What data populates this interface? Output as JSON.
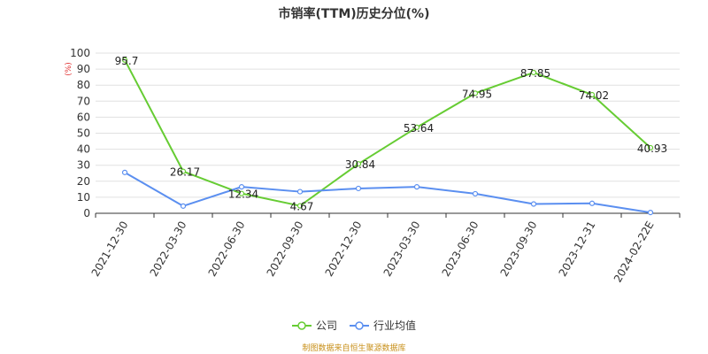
{
  "chart_data": {
    "type": "line",
    "title": "市销率(TTM)历史分位(%)",
    "y_unit": "(%)",
    "ylim": [
      0,
      100
    ],
    "yticks": [
      0,
      10,
      20,
      30,
      40,
      50,
      60,
      70,
      80,
      90,
      100
    ],
    "grid": true,
    "legend_position": "bottom",
    "categories": [
      "2021-12-30",
      "2022-03-30",
      "2022-06-30",
      "2022-09-30",
      "2022-12-30",
      "2023-03-30",
      "2023-06-30",
      "2023-09-30",
      "2023-12-31",
      "2024-02-22E"
    ],
    "series": [
      {
        "name": "公司",
        "color": "#66cc33",
        "values": [
          95.7,
          26.17,
          12.34,
          4.67,
          30.84,
          53.64,
          74.95,
          87.85,
          74.02,
          40.93
        ],
        "labels": [
          "95.7",
          "26.17",
          "12.34",
          "4.67",
          "30.84",
          "53.64",
          "74.95",
          "87.85",
          "74.02",
          "40.93"
        ]
      },
      {
        "name": "行业均值",
        "color": "#5b8ff0",
        "values": [
          25.5,
          4.5,
          16.5,
          13.5,
          15.5,
          16.5,
          12.2,
          5.8,
          6.2,
          0.5
        ]
      }
    ],
    "source": "制图数据来自恒生聚源数据库"
  }
}
